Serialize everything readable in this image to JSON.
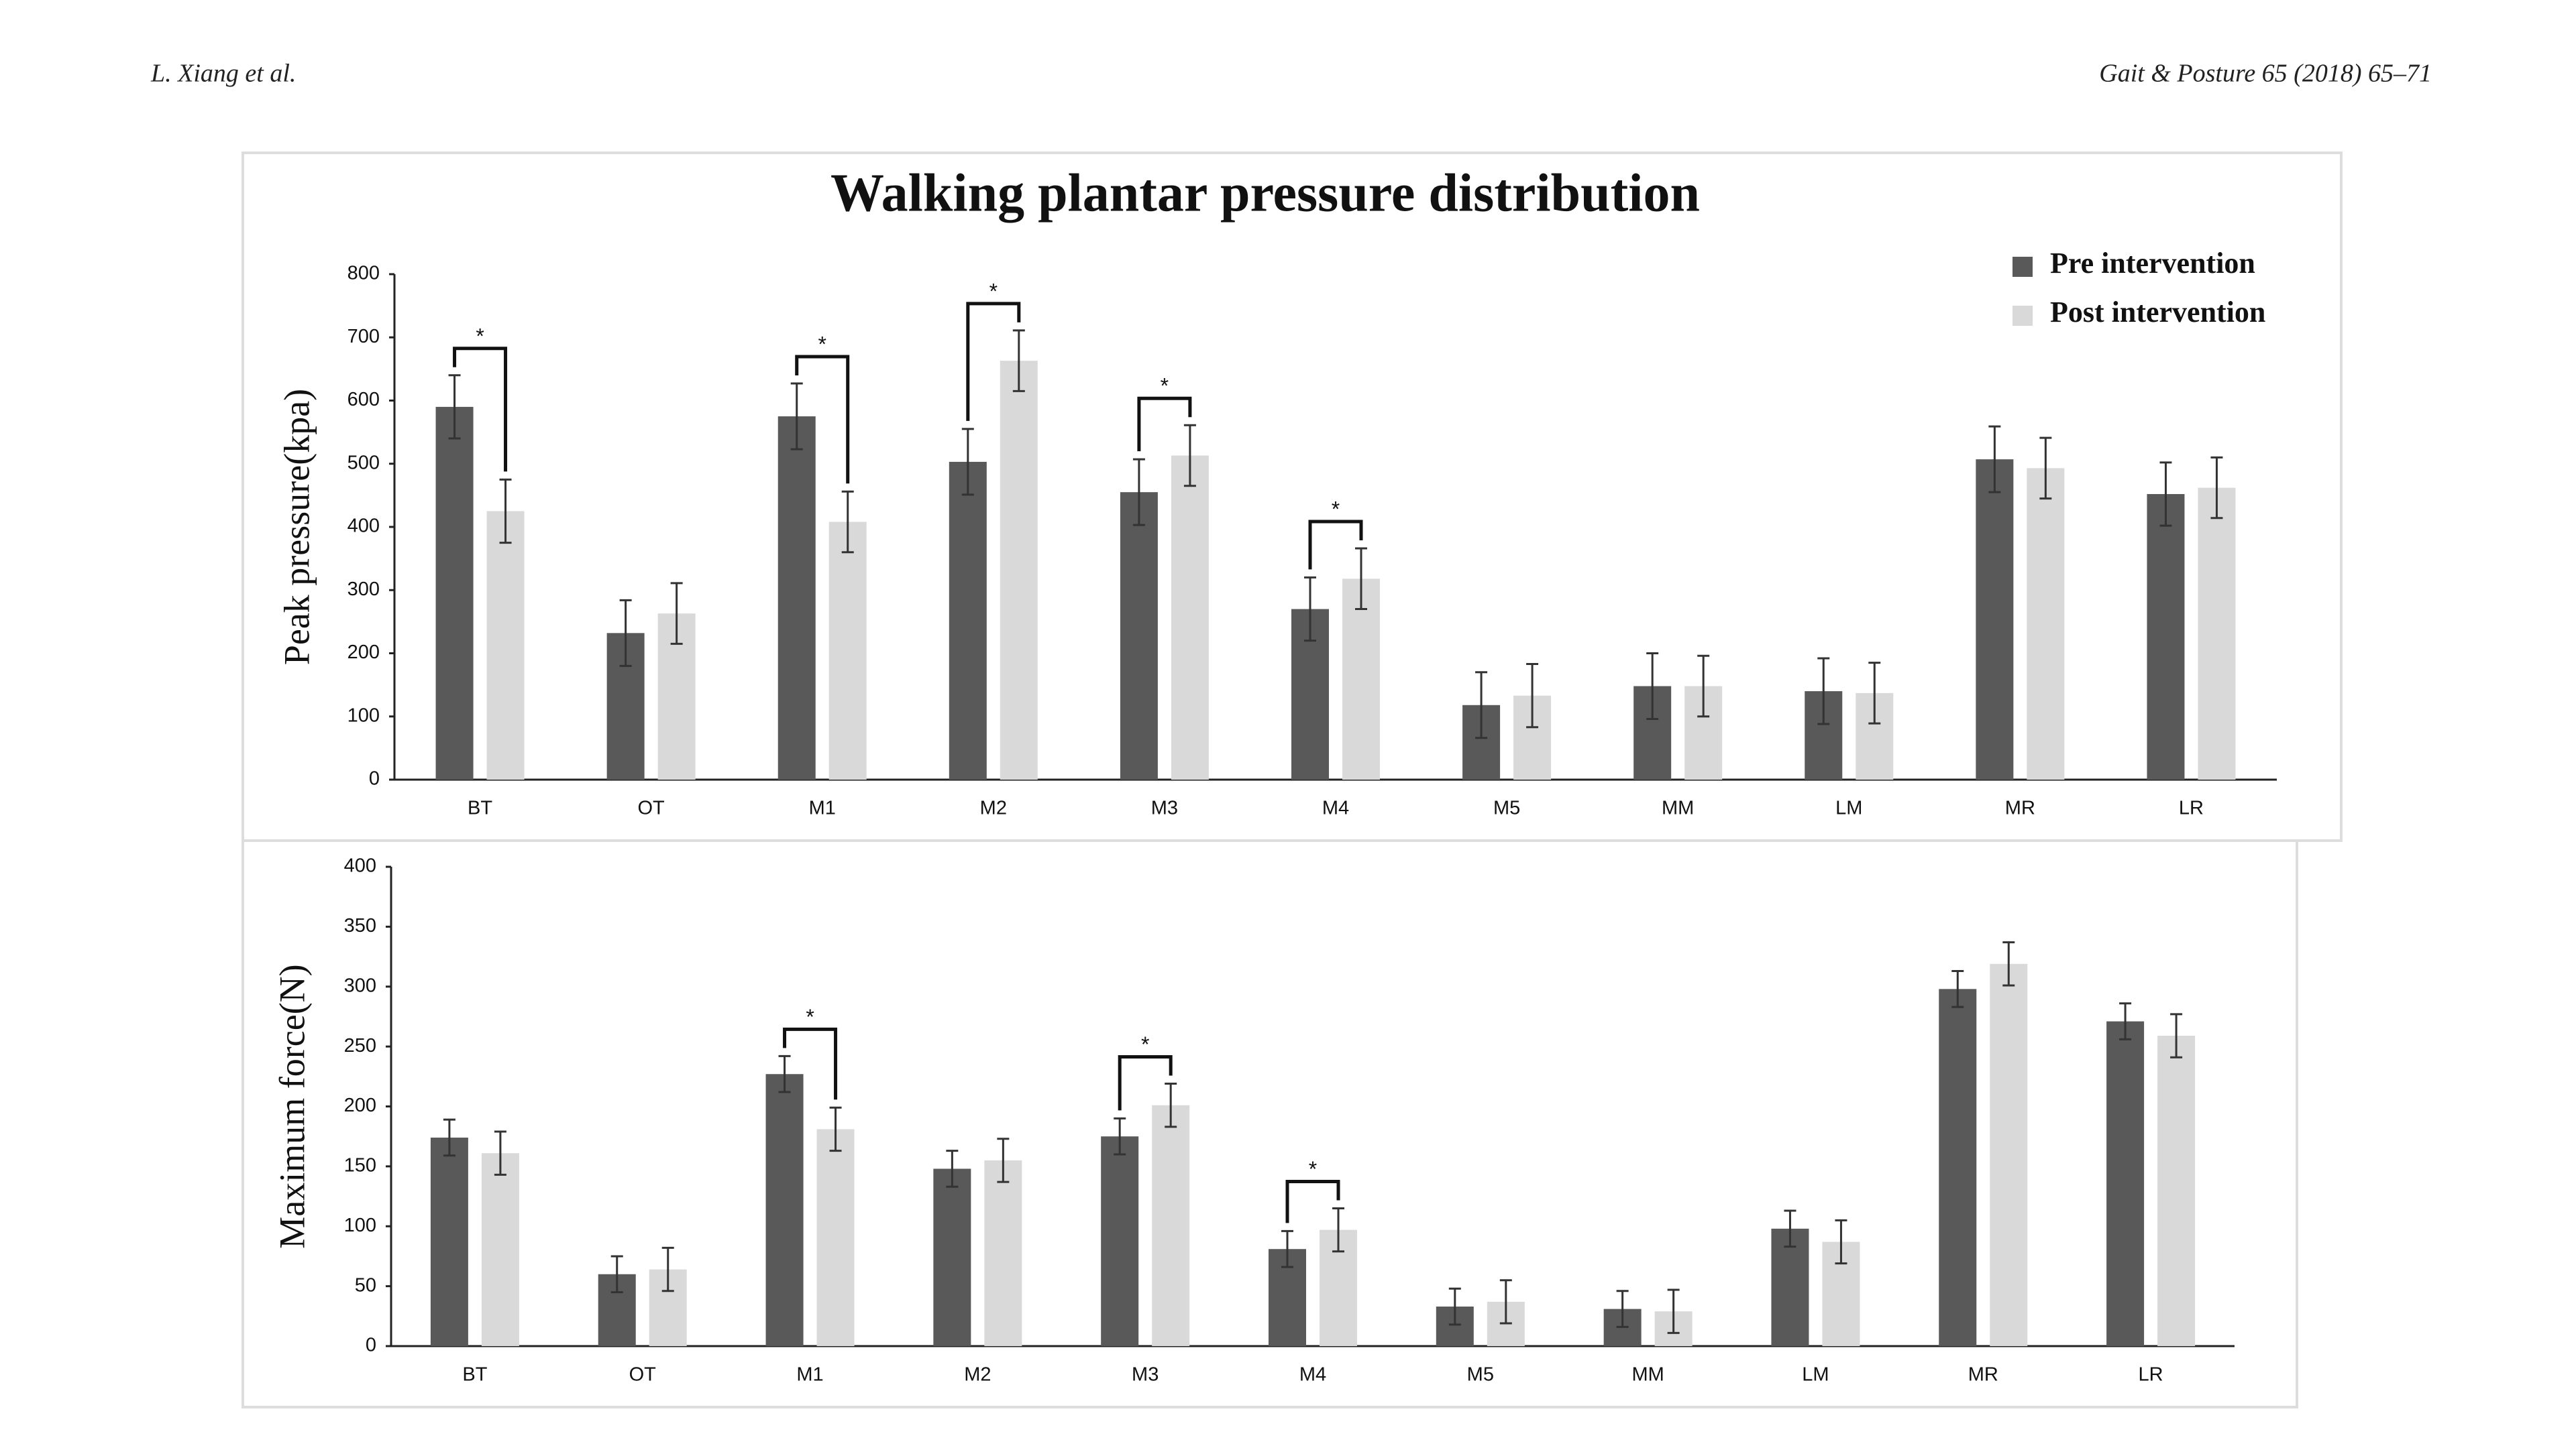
{
  "header": {
    "left": "L. Xiang et al.",
    "right": "Gait & Posture 65 (2018) 65–71"
  },
  "chart_data": [
    {
      "type": "bar",
      "title": "Walking plantar pressure distribution",
      "y_label": "Peak pressure(kpa)",
      "categories": [
        "BT",
        "OT",
        "M1",
        "M2",
        "M3",
        "M4",
        "M5",
        "MM",
        "LM",
        "MR",
        "LR"
      ],
      "series": [
        {
          "name": "Pre intervention",
          "color": "#595959",
          "values": [
            590,
            232,
            575,
            503,
            455,
            270,
            118,
            148,
            140,
            507,
            452
          ],
          "errors": [
            50,
            52,
            52,
            52,
            52,
            50,
            52,
            52,
            52,
            52,
            50
          ]
        },
        {
          "name": "Post intervention",
          "color": "#d9d9d9",
          "values": [
            425,
            263,
            408,
            663,
            513,
            318,
            133,
            148,
            137,
            493,
            462
          ],
          "errors": [
            50,
            48,
            48,
            48,
            48,
            48,
            50,
            48,
            48,
            48,
            48
          ]
        }
      ],
      "ylim": [
        0,
        800
      ],
      "yticks": [
        0,
        100,
        200,
        300,
        400,
        500,
        600,
        700,
        800
      ],
      "legend": "upper right",
      "annotations": [
        {
          "text": "*",
          "category": "BT"
        },
        {
          "text": "*",
          "category": "M1"
        },
        {
          "text": "*",
          "category": "M2"
        },
        {
          "text": "*",
          "category": "M3"
        },
        {
          "text": "*",
          "category": "M4"
        }
      ]
    },
    {
      "type": "bar",
      "y_label": "Maximum force(N)",
      "categories": [
        "BT",
        "OT",
        "M1",
        "M2",
        "M3",
        "M4",
        "M5",
        "MM",
        "LM",
        "MR",
        "LR"
      ],
      "series": [
        {
          "color": "#595959",
          "values": [
            174,
            60,
            227,
            148,
            175,
            81,
            33,
            31,
            98,
            298,
            271
          ],
          "errors": [
            15,
            15,
            15,
            15,
            15,
            15,
            15,
            15,
            15,
            15,
            15
          ]
        },
        {
          "color": "#d9d9d9",
          "values": [
            161,
            64,
            181,
            155,
            201,
            97,
            37,
            29,
            87,
            319,
            259
          ],
          "errors": [
            18,
            18,
            18,
            18,
            18,
            18,
            18,
            18,
            18,
            18,
            18
          ]
        }
      ],
      "ylim": [
        0,
        400
      ],
      "yticks": [
        0,
        50,
        100,
        150,
        200,
        250,
        300,
        350,
        400
      ],
      "annotations": [
        {
          "text": "*",
          "category": "M1"
        },
        {
          "text": "*",
          "category": "M3"
        },
        {
          "text": "*",
          "category": "M4"
        }
      ]
    }
  ]
}
